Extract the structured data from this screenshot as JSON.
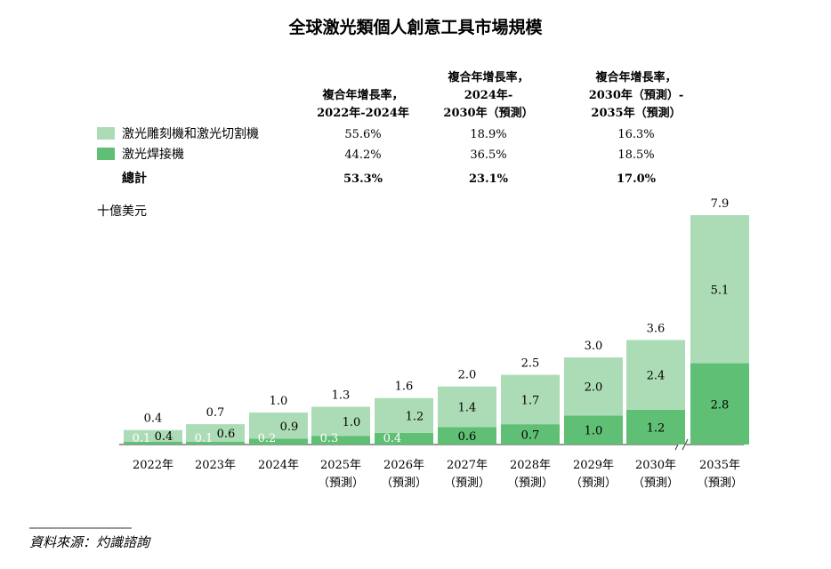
{
  "chart_data": {
    "type": "bar",
    "stacked": true,
    "title": "全球激光類個人創意工具市場規模",
    "ylabel": "十億美元",
    "xlabel": "",
    "ylim": [
      0,
      8.5
    ],
    "categories": [
      [
        "2022年",
        ""
      ],
      [
        "2023年",
        ""
      ],
      [
        "2024年",
        ""
      ],
      [
        "2025年",
        "（預測）"
      ],
      [
        "2026年",
        "（預測）"
      ],
      [
        "2027年",
        "（預測）"
      ],
      [
        "2028年",
        "（預測）"
      ],
      [
        "2029年",
        "（預測）"
      ],
      [
        "2030年",
        "（預測）"
      ],
      [
        "2035年",
        "（預測）"
      ]
    ],
    "axis_break_before_index": 9,
    "series": [
      {
        "name": "激光焊接機",
        "color": "#5fbf74",
        "values": [
          0.1,
          0.1,
          0.2,
          0.3,
          0.4,
          0.6,
          0.7,
          1.0,
          1.2,
          2.8
        ],
        "labels": [
          "0.1",
          "0.1",
          "0.2",
          "0.3",
          "0.4",
          "0.6",
          "0.7",
          "1.0",
          "1.2",
          "2.8"
        ]
      },
      {
        "name": "激光雕刻機和激光切割機",
        "color": "#acdcb5",
        "values": [
          0.4,
          0.6,
          0.9,
          1.0,
          1.2,
          1.4,
          1.7,
          2.0,
          2.4,
          5.1
        ],
        "labels": [
          "0.4",
          "0.6",
          "0.9",
          "1.0",
          "1.2",
          "1.4",
          "1.7",
          "2.0",
          "2.4",
          "5.1"
        ]
      }
    ],
    "totals": [
      0.4,
      0.7,
      1.0,
      1.3,
      1.6,
      2.0,
      2.5,
      3.0,
      3.6,
      7.9
    ],
    "total_labels": [
      "0.4",
      "0.7",
      "1.0",
      "1.3",
      "1.6",
      "2.0",
      "2.5",
      "3.0",
      "3.6",
      "7.9"
    ],
    "cagr_table": {
      "headers": [
        [
          "複合年增長率，",
          "2022年-2024年"
        ],
        [
          "複合年增長率，",
          "2024年-",
          "2030年（預測）"
        ],
        [
          "複合年增長率，",
          "2030年（預測）-",
          "2035年（預測）"
        ]
      ],
      "rows": [
        {
          "label": "激光雕刻機和激光切割機",
          "swatch": "#acdcb5",
          "values": [
            "55.6%",
            "18.9%",
            "16.3%"
          ],
          "bold": false
        },
        {
          "label": "激光焊接機",
          "swatch": "#5fbf74",
          "values": [
            "44.2%",
            "36.5%",
            "18.5%"
          ],
          "bold": false
        },
        {
          "label": "總計",
          "swatch": null,
          "values": [
            "53.3%",
            "23.1%",
            "17.0%"
          ],
          "bold": true
        }
      ]
    },
    "source": "資料來源：灼識諮詢"
  }
}
